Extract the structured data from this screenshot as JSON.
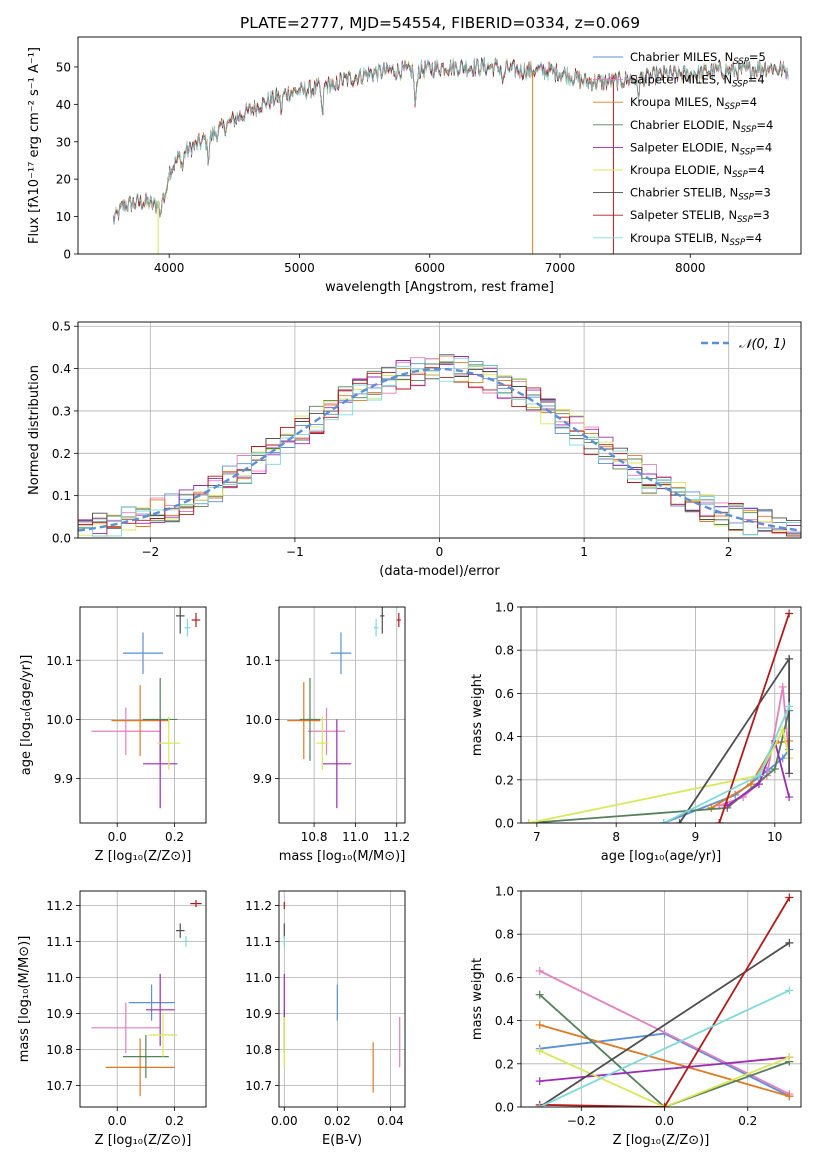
{
  "figure": {
    "title": "PLATE=2777, MJD=54554, FIBERID=0334, z=0.069"
  },
  "colors": {
    "Chabrier MILES": "#5b8fd6",
    "Salpeter MILES": "#e47fbf",
    "Kroupa MILES": "#e07a22",
    "Chabrier ELODIE": "#55805a",
    "Salpeter ELODIE": "#9b2db5",
    "Kroupa ELODIE": "#d8e85a",
    "Chabrier STELIB": "#4d4d4d",
    "Salpeter STELIB": "#b31b1b",
    "Kroupa STELIB": "#7fd9da",
    "normal": "#5b8fd6"
  },
  "chart_data": [
    {
      "id": "spectrum",
      "type": "line",
      "xlabel": "wavelength [Angstrom, rest frame]",
      "ylabel": "Flux [fλ10⁻¹⁷ erg cm⁻² s⁻¹ A⁻¹]",
      "xlim": [
        3300,
        8850
      ],
      "ylim": [
        0,
        58
      ],
      "xticks": [
        4000,
        5000,
        6000,
        7000,
        8000
      ],
      "yticks": [
        0,
        10,
        20,
        30,
        40,
        50
      ],
      "grid": false,
      "legend_position": "top-right",
      "continuum": {
        "x": [
          3570,
          3650,
          3800,
          3900,
          3950,
          4000,
          4100,
          4300,
          4500,
          4700,
          4900,
          5100,
          5300,
          5500,
          5700,
          5900,
          6100,
          6300,
          6500,
          6700,
          6900,
          7050,
          7200,
          7400,
          7600,
          7800,
          8000,
          8200,
          8400,
          8600,
          8750
        ],
        "y": [
          9,
          13,
          14,
          13,
          17,
          22,
          27,
          31,
          36,
          40,
          43,
          44,
          46,
          48,
          49,
          49,
          50,
          50,
          50,
          49,
          49,
          48,
          46,
          46,
          47,
          48,
          48,
          49,
          49,
          50,
          49
        ]
      },
      "series": [
        {
          "name": "Chabrier MILES, N_SSP=5"
        },
        {
          "name": "Salpeter MILES, N_SSP=4"
        },
        {
          "name": "Kroupa MILES, N_SSP=4"
        },
        {
          "name": "Chabrier ELODIE, N_SSP=4"
        },
        {
          "name": "Salpeter ELODIE, N_SSP=4"
        },
        {
          "name": "Kroupa ELODIE, N_SSP=4"
        },
        {
          "name": "Chabrier STELIB, N_SSP=3"
        },
        {
          "name": "Salpeter STELIB, N_SSP=3"
        },
        {
          "name": "Kroupa STELIB, N_SSP=4"
        }
      ],
      "legend_labels": [
        "Chabrier MILES, N",
        "Salpeter MILES, N",
        "Kroupa MILES, N",
        "Chabrier ELODIE, N",
        "Salpeter ELODIE, N",
        "Kroupa ELODIE, N",
        "Chabrier STELIB, N",
        "Salpeter STELIB, N",
        "Kroupa STELIB, N"
      ],
      "legend_sub": "SSP",
      "legend_counts": [
        "=5",
        "=4",
        "=4",
        "=4",
        "=4",
        "=4",
        "=3",
        "=3",
        "=4"
      ]
    },
    {
      "id": "residuals",
      "type": "line",
      "xlabel": "(data-model)/error",
      "ylabel": "Normed distribution",
      "xlim": [
        -2.5,
        2.5
      ],
      "ylim": [
        0,
        0.51
      ],
      "xticks": [
        -2,
        -1,
        0,
        1,
        2
      ],
      "xtick_labels": [
        "−2",
        "−1",
        "0",
        "1",
        "2"
      ],
      "yticks": [
        0.0,
        0.1,
        0.2,
        0.3,
        0.4,
        0.5
      ],
      "ytick_labels": [
        "0.0",
        "0.1",
        "0.2",
        "0.3",
        "0.4",
        "0.5"
      ],
      "grid": true,
      "legend_position": "top-right",
      "normal_label": "𝒩(0, 1)",
      "bin_width": 0.1
    },
    {
      "id": "age_vs_Z",
      "type": "scatter",
      "xlabel": "Z [log₁₀(Z/Z⊙)]",
      "ylabel": "age  [log₁₀(age/yr)]",
      "xlim": [
        -0.13,
        0.31
      ],
      "ylim": [
        9.825,
        10.19
      ],
      "xticks": [
        0.0,
        0.2
      ],
      "xtick_labels": [
        "0.0",
        "0.2"
      ],
      "yticks": [
        9.9,
        10.0,
        10.1
      ],
      "ytick_labels": [
        "9.9",
        "10.0",
        "10.1"
      ],
      "grid": true,
      "points": [
        {
          "series": "Chabrier MILES",
          "x": 0.09,
          "y": 10.112,
          "xerr": 0.07,
          "yerr": 0.035
        },
        {
          "series": "Salpeter MILES",
          "x": 0.03,
          "y": 9.98,
          "xerr": 0.12,
          "yerr": 0.04
        },
        {
          "series": "Kroupa MILES",
          "x": 0.08,
          "y": 9.998,
          "xerr": 0.1,
          "yerr": 0.06
        },
        {
          "series": "Chabrier ELODIE",
          "x": 0.15,
          "y": 10.0,
          "xerr": 0.06,
          "yerr": 0.07
        },
        {
          "series": "Salpeter ELODIE",
          "x": 0.15,
          "y": 9.925,
          "xerr": 0.06,
          "yerr": 0.075
        },
        {
          "series": "Kroupa ELODIE",
          "x": 0.18,
          "y": 9.96,
          "xerr": 0.04,
          "yerr": 0.045
        },
        {
          "series": "Chabrier STELIB",
          "x": 0.22,
          "y": 10.175,
          "xerr": 0.015,
          "yerr": 0.03
        },
        {
          "series": "Salpeter STELIB",
          "x": 0.275,
          "y": 10.168,
          "xerr": 0.015,
          "yerr": 0.012
        },
        {
          "series": "Kroupa STELIB",
          "x": 0.245,
          "y": 10.155,
          "xerr": 0.01,
          "yerr": 0.015
        }
      ]
    },
    {
      "id": "age_vs_mass",
      "type": "scatter",
      "xlabel": "mass [log₁₀(M/M⊙)]",
      "ylabel": "",
      "xlim": [
        10.63,
        11.24
      ],
      "ylim": [
        9.825,
        10.19
      ],
      "xticks": [
        10.8,
        11.0,
        11.2
      ],
      "xtick_labels": [
        "10.8",
        "11.0",
        "11.2"
      ],
      "yticks": [
        9.9,
        10.0,
        10.1
      ],
      "ytick_labels": [
        "9.9",
        "10.0",
        "10.1"
      ],
      "grid": true,
      "points": [
        {
          "series": "Chabrier MILES",
          "x": 10.93,
          "y": 10.112,
          "xerr": 0.05,
          "yerr": 0.035
        },
        {
          "series": "Salpeter MILES",
          "x": 10.86,
          "y": 9.98,
          "xerr": 0.09,
          "yerr": 0.04
        },
        {
          "series": "Kroupa MILES",
          "x": 10.75,
          "y": 9.998,
          "xerr": 0.08,
          "yerr": 0.065
        },
        {
          "series": "Chabrier ELODIE",
          "x": 10.78,
          "y": 10.0,
          "xerr": 0.05,
          "yerr": 0.07
        },
        {
          "series": "Salpeter ELODIE",
          "x": 10.91,
          "y": 9.925,
          "xerr": 0.07,
          "yerr": 0.075
        },
        {
          "series": "Kroupa ELODIE",
          "x": 10.84,
          "y": 9.96,
          "xerr": 0.03,
          "yerr": 0.045
        },
        {
          "series": "Chabrier STELIB",
          "x": 11.13,
          "y": 10.175,
          "xerr": 0.01,
          "yerr": 0.03
        },
        {
          "series": "Salpeter STELIB",
          "x": 11.21,
          "y": 10.168,
          "xerr": 0.01,
          "yerr": 0.012
        },
        {
          "series": "Kroupa STELIB",
          "x": 11.1,
          "y": 10.155,
          "xerr": 0.01,
          "yerr": 0.015
        }
      ]
    },
    {
      "id": "weight_vs_age",
      "type": "line",
      "xlabel": "age  [log₁₀(age/yr)]",
      "ylabel": "mass weight",
      "xlim": [
        6.8,
        10.33
      ],
      "ylim": [
        0,
        1.0
      ],
      "xticks": [
        7,
        8,
        9,
        10
      ],
      "xtick_labels": [
        "7",
        "8",
        "9",
        "10"
      ],
      "yticks": [
        0.0,
        0.2,
        0.4,
        0.6,
        0.8,
        1.0
      ],
      "ytick_labels": [
        "0.0",
        "0.2",
        "0.4",
        "0.6",
        "0.8",
        "1.0"
      ],
      "grid": true,
      "series": [
        {
          "series": "Chabrier MILES",
          "x": [
            8.6,
            9.5,
            9.9,
            10.1,
            10.18
          ],
          "y": [
            0.0,
            0.13,
            0.24,
            0.3,
            0.34
          ]
        },
        {
          "series": "Salpeter MILES",
          "x": [
            9.3,
            9.6,
            9.9,
            10.1,
            10.18
          ],
          "y": [
            0.08,
            0.12,
            0.22,
            0.63,
            0.3
          ]
        },
        {
          "series": "Kroupa MILES",
          "x": [
            9.2,
            9.7,
            10.0,
            10.18
          ],
          "y": [
            0.07,
            0.18,
            0.37,
            0.38
          ]
        },
        {
          "series": "Chabrier ELODIE",
          "x": [
            6.9,
            9.4,
            10.0,
            10.18
          ],
          "y": [
            0.0,
            0.07,
            0.25,
            0.52
          ]
        },
        {
          "series": "Salpeter ELODIE",
          "x": [
            9.4,
            9.8,
            10.0,
            10.18
          ],
          "y": [
            0.08,
            0.18,
            0.38,
            0.12
          ]
        },
        {
          "series": "Kroupa ELODIE",
          "x": [
            6.9,
            9.8,
            10.1,
            10.18
          ],
          "y": [
            0.0,
            0.22,
            0.43,
            0.3
          ]
        },
        {
          "series": "Chabrier STELIB",
          "x": [
            8.8,
            10.18,
            10.18
          ],
          "y": [
            0.0,
            0.76,
            0.23
          ]
        },
        {
          "series": "Salpeter STELIB",
          "x": [
            9.3,
            10.18
          ],
          "y": [
            0.0,
            0.97
          ]
        },
        {
          "series": "Kroupa STELIB",
          "x": [
            8.6,
            9.8,
            10.18
          ],
          "y": [
            0.0,
            0.22,
            0.54
          ]
        }
      ]
    },
    {
      "id": "mass_vs_Z",
      "type": "scatter",
      "xlabel": "Z [log₁₀(Z/Z⊙)]",
      "ylabel": "mass [log₁₀(M/M⊙)]",
      "xlim": [
        -0.13,
        0.31
      ],
      "ylim": [
        10.64,
        11.24
      ],
      "xticks": [
        0.0,
        0.2
      ],
      "xtick_labels": [
        "0.0",
        "0.2"
      ],
      "yticks": [
        10.7,
        10.8,
        10.9,
        11.0,
        11.1,
        11.2
      ],
      "ytick_labels": [
        "10.7",
        "10.8",
        "10.9",
        "11.0",
        "11.1",
        "11.2"
      ],
      "grid": true,
      "points": [
        {
          "series": "Chabrier MILES",
          "x": 0.12,
          "y": 10.93,
          "xerr": 0.08,
          "yerr": 0.05
        },
        {
          "series": "Salpeter MILES",
          "x": 0.03,
          "y": 10.86,
          "xerr": 0.12,
          "yerr": 0.07
        },
        {
          "series": "Kroupa MILES",
          "x": 0.08,
          "y": 10.75,
          "xerr": 0.12,
          "yerr": 0.08
        },
        {
          "series": "Chabrier ELODIE",
          "x": 0.1,
          "y": 10.78,
          "xerr": 0.08,
          "yerr": 0.06
        },
        {
          "series": "Salpeter ELODIE",
          "x": 0.15,
          "y": 10.91,
          "xerr": 0.05,
          "yerr": 0.1
        },
        {
          "series": "Kroupa ELODIE",
          "x": 0.16,
          "y": 10.84,
          "xerr": 0.05,
          "yerr": 0.06
        },
        {
          "series": "Chabrier STELIB",
          "x": 0.22,
          "y": 11.13,
          "xerr": 0.015,
          "yerr": 0.02
        },
        {
          "series": "Salpeter STELIB",
          "x": 0.275,
          "y": 11.205,
          "xerr": 0.02,
          "yerr": 0.01
        },
        {
          "series": "Kroupa STELIB",
          "x": 0.24,
          "y": 11.1,
          "xerr": 0.01,
          "yerr": 0.015
        }
      ]
    },
    {
      "id": "mass_vs_ebv",
      "type": "scatter",
      "xlabel": "E(B-V)",
      "ylabel": "",
      "xlim": [
        -0.002,
        0.0455
      ],
      "ylim": [
        10.64,
        11.24
      ],
      "xticks": [
        0.0,
        0.02,
        0.04
      ],
      "xtick_labels": [
        "0.00",
        "0.02",
        "0.04"
      ],
      "yticks": [
        10.7,
        10.8,
        10.9,
        11.0,
        11.1,
        11.2
      ],
      "ytick_labels": [
        "10.7",
        "10.8",
        "10.9",
        "11.0",
        "11.1",
        "11.2"
      ],
      "grid": true,
      "points": [
        {
          "series": "Chabrier MILES",
          "x": 0.02,
          "y": 10.93,
          "xerr": 0,
          "yerr": 0.05
        },
        {
          "series": "Salpeter MILES",
          "x": 0.0435,
          "y": 10.82,
          "xerr": 0,
          "yerr": 0.07
        },
        {
          "series": "Kroupa MILES",
          "x": 0.0335,
          "y": 10.75,
          "xerr": 0,
          "yerr": 0.07
        },
        {
          "series": "Chabrier ELODIE",
          "x": 0.0,
          "y": 10.85,
          "xerr": 0,
          "yerr": 0.06
        },
        {
          "series": "Salpeter ELODIE",
          "x": 0.0,
          "y": 10.95,
          "xerr": 0,
          "yerr": 0.06
        },
        {
          "series": "Kroupa ELODIE",
          "x": 0.0,
          "y": 10.82,
          "xerr": 0,
          "yerr": 0.07
        },
        {
          "series": "Chabrier STELIB",
          "x": 0.0,
          "y": 11.13,
          "xerr": 0,
          "yerr": 0.02
        },
        {
          "series": "Salpeter STELIB",
          "x": 0.0,
          "y": 11.2,
          "xerr": 0,
          "yerr": 0.01
        },
        {
          "series": "Kroupa STELIB",
          "x": 0.0,
          "y": 11.1,
          "xerr": 0,
          "yerr": 0.015
        }
      ]
    },
    {
      "id": "weight_vs_Z",
      "type": "line",
      "xlabel": "Z [log₁₀(Z/Z⊙)]",
      "ylabel": "mass weight",
      "xlim": [
        -0.345,
        0.328
      ],
      "ylim": [
        0,
        1.0
      ],
      "xticks": [
        -0.2,
        0.0,
        0.2
      ],
      "xtick_labels": [
        "−0.2",
        "0.0",
        "0.2"
      ],
      "yticks": [
        0.0,
        0.2,
        0.4,
        0.6,
        0.8,
        1.0
      ],
      "ytick_labels": [
        "0.0",
        "0.2",
        "0.4",
        "0.6",
        "0.8",
        "1.0"
      ],
      "grid": true,
      "series": [
        {
          "series": "Chabrier MILES",
          "x": [
            -0.3,
            0.0,
            0.3
          ],
          "y": [
            0.27,
            0.34,
            0.05
          ]
        },
        {
          "series": "Salpeter MILES",
          "x": [
            -0.3,
            0.3
          ],
          "y": [
            0.63,
            0.06
          ]
        },
        {
          "series": "Kroupa MILES",
          "x": [
            -0.3,
            0.3
          ],
          "y": [
            0.38,
            0.05
          ]
        },
        {
          "series": "Chabrier ELODIE",
          "x": [
            -0.3,
            0.0,
            0.3
          ],
          "y": [
            0.52,
            0.0,
            0.21
          ]
        },
        {
          "series": "Salpeter ELODIE",
          "x": [
            -0.3,
            0.3
          ],
          "y": [
            0.12,
            0.23
          ]
        },
        {
          "series": "Kroupa ELODIE",
          "x": [
            -0.3,
            0.0,
            0.3
          ],
          "y": [
            0.26,
            0.0,
            0.23
          ]
        },
        {
          "series": "Chabrier STELIB",
          "x": [
            -0.3,
            0.3
          ],
          "y": [
            0.0,
            0.76
          ]
        },
        {
          "series": "Salpeter STELIB",
          "x": [
            -0.3,
            0.0,
            0.3
          ],
          "y": [
            0.01,
            0.0,
            0.97
          ]
        },
        {
          "series": "Kroupa STELIB",
          "x": [
            -0.3,
            0.3
          ],
          "y": [
            0.0,
            0.54
          ]
        }
      ]
    }
  ]
}
